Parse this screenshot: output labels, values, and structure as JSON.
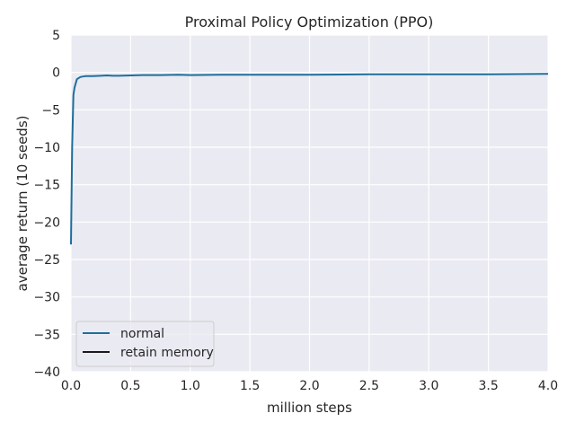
{
  "chart_data": {
    "type": "line",
    "title": "Proximal Policy Optimization (PPO)",
    "xlabel": "million steps",
    "ylabel": "average return (10 seeds)",
    "xlim": [
      0.0,
      4.0
    ],
    "ylim": [
      -40,
      5
    ],
    "xticks": [
      "0.0",
      "0.5",
      "1.0",
      "1.5",
      "2.0",
      "2.5",
      "3.0",
      "3.5",
      "4.0"
    ],
    "yticks": [
      "5",
      "0",
      "−5",
      "−10",
      "−15",
      "−20",
      "−25",
      "−30",
      "−35",
      "−40"
    ],
    "grid": true,
    "legend_position": "bottom-left",
    "series": [
      {
        "name": "normal",
        "color": "#1f6e9c",
        "x": [
          0.0,
          0.01,
          0.02,
          0.03,
          0.05,
          0.08,
          0.12,
          0.18,
          0.25,
          0.3,
          0.35,
          0.4,
          0.5,
          0.6,
          0.75,
          0.9,
          1.0,
          1.25,
          1.5,
          1.75,
          2.0,
          2.5,
          3.0,
          3.5,
          4.0
        ],
        "y": [
          -23.0,
          -10.0,
          -3.0,
          -2.0,
          -0.9,
          -0.6,
          -0.5,
          -0.5,
          -0.45,
          -0.4,
          -0.45,
          -0.45,
          -0.4,
          -0.35,
          -0.35,
          -0.3,
          -0.35,
          -0.3,
          -0.3,
          -0.3,
          -0.3,
          -0.25,
          -0.25,
          -0.25,
          -0.2
        ]
      },
      {
        "name": "retain memory",
        "color": "#1a1a1a",
        "x": [],
        "y": []
      }
    ]
  }
}
